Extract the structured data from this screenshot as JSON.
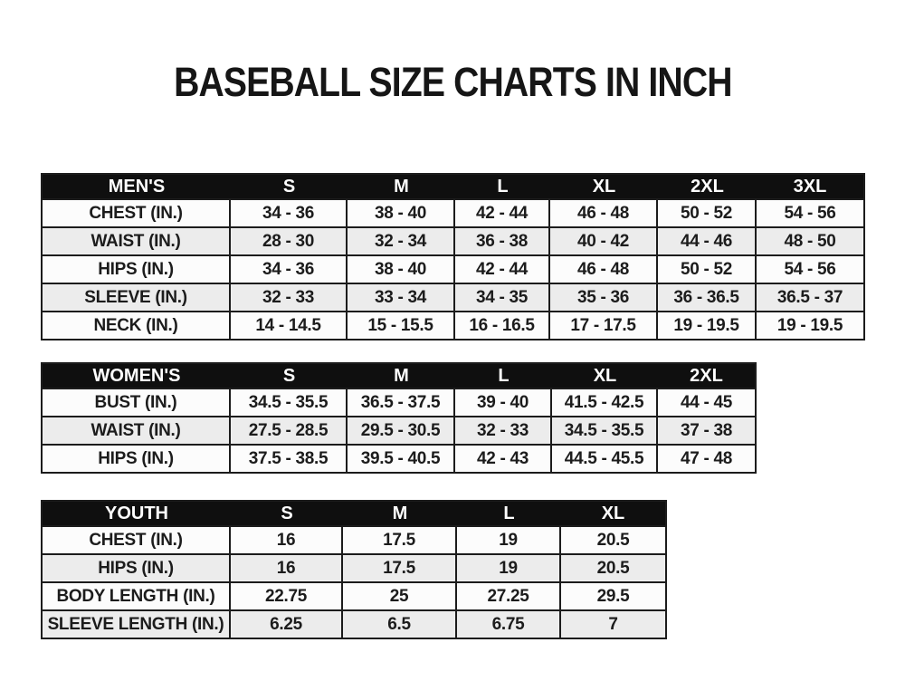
{
  "title": "BASEBALL SIZE CHARTS IN INCH",
  "colors": {
    "page_bg": "#ffffff",
    "header_bg": "#0f0f0f",
    "header_text": "#ffffff",
    "row_bg": "#fcfcfc",
    "row_alt_bg": "#ececec",
    "border": "#1c1c1c",
    "text": "#1c1c1c"
  },
  "tables": [
    {
      "id": "mens",
      "header": [
        "MEN'S",
        "S",
        "M",
        "L",
        "XL",
        "2XL",
        "3XL"
      ],
      "rows": [
        [
          "CHEST (IN.)",
          "34 - 36",
          "38 - 40",
          "42 - 44",
          "46 - 48",
          "50 - 52",
          "54 - 56"
        ],
        [
          "WAIST (IN.)",
          "28 - 30",
          "32 - 34",
          "36 - 38",
          "40 - 42",
          "44 - 46",
          "48 - 50"
        ],
        [
          "HIPS (IN.)",
          "34 - 36",
          "38 - 40",
          "42 - 44",
          "46 - 48",
          "50 - 52",
          "54 - 56"
        ],
        [
          "SLEEVE (IN.)",
          "32 - 33",
          "33 - 34",
          "34 - 35",
          "35 - 36",
          "36 - 36.5",
          "36.5 - 37"
        ],
        [
          "NECK (IN.)",
          "14 - 14.5",
          "15 - 15.5",
          "16 - 16.5",
          "17 - 17.5",
          "19 - 19.5",
          "19 - 19.5"
        ]
      ]
    },
    {
      "id": "womens",
      "header": [
        "WOMEN'S",
        "S",
        "M",
        "L",
        "XL",
        "2XL"
      ],
      "rows": [
        [
          "BUST (IN.)",
          "34.5 - 35.5",
          "36.5 - 37.5",
          "39 - 40",
          "41.5 - 42.5",
          "44 - 45"
        ],
        [
          "WAIST (IN.)",
          "27.5 - 28.5",
          "29.5 - 30.5",
          "32 - 33",
          "34.5 - 35.5",
          "37 - 38"
        ],
        [
          "HIPS (IN.)",
          "37.5 - 38.5",
          "39.5 - 40.5",
          "42 - 43",
          "44.5 - 45.5",
          "47 - 48"
        ]
      ]
    },
    {
      "id": "youth",
      "header": [
        "YOUTH",
        "S",
        "M",
        "L",
        "XL"
      ],
      "rows": [
        [
          "CHEST (IN.)",
          "16",
          "17.5",
          "19",
          "20.5"
        ],
        [
          "HIPS (IN.)",
          "16",
          "17.5",
          "19",
          "20.5"
        ],
        [
          "BODY LENGTH (IN.)",
          "22.75",
          "25",
          "27.25",
          "29.5"
        ],
        [
          "SLEEVE LENGTH (IN.)",
          "6.25",
          "6.5",
          "6.75",
          "7"
        ]
      ]
    }
  ]
}
